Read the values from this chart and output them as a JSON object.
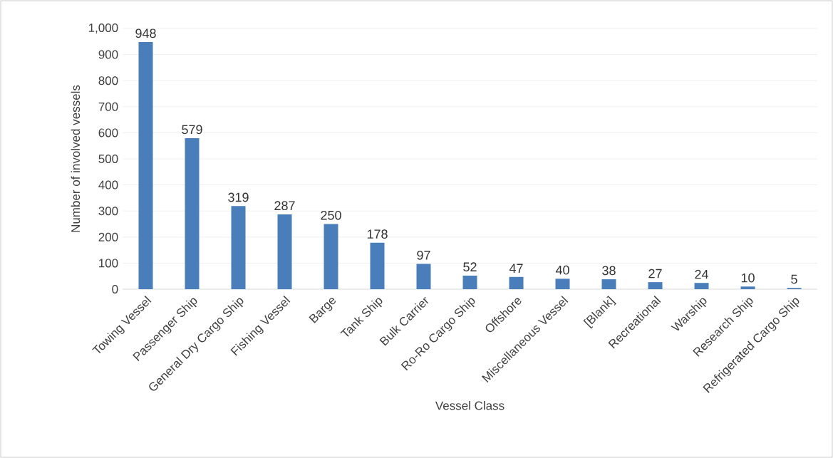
{
  "chart_data": {
    "type": "bar",
    "xlabel": "Vessel Class",
    "ylabel": "Number of involved vessels",
    "categories": [
      "Towing Vessel",
      "Passenger Ship",
      "General Dry Cargo Ship",
      "Fishing Vessel",
      "Barge",
      "Tank Ship",
      "Bulk Carrier",
      "Ro-Ro Cargo Ship",
      "Offshore",
      "Miscellaneous Vessel",
      "[Blank]",
      "Recreational",
      "Warship",
      "Research Ship",
      "Refrigerated Cargo Ship"
    ],
    "values": [
      948,
      579,
      319,
      287,
      250,
      178,
      97,
      52,
      47,
      40,
      38,
      27,
      24,
      10,
      5
    ],
    "color": "#4a7ebb",
    "data_labels": true,
    "grid": "y",
    "ylim": [
      0,
      1000
    ],
    "yticks": [
      0,
      100,
      200,
      300,
      400,
      500,
      600,
      700,
      800,
      900,
      {
        "value": 1000,
        "label": "1,000"
      }
    ]
  }
}
